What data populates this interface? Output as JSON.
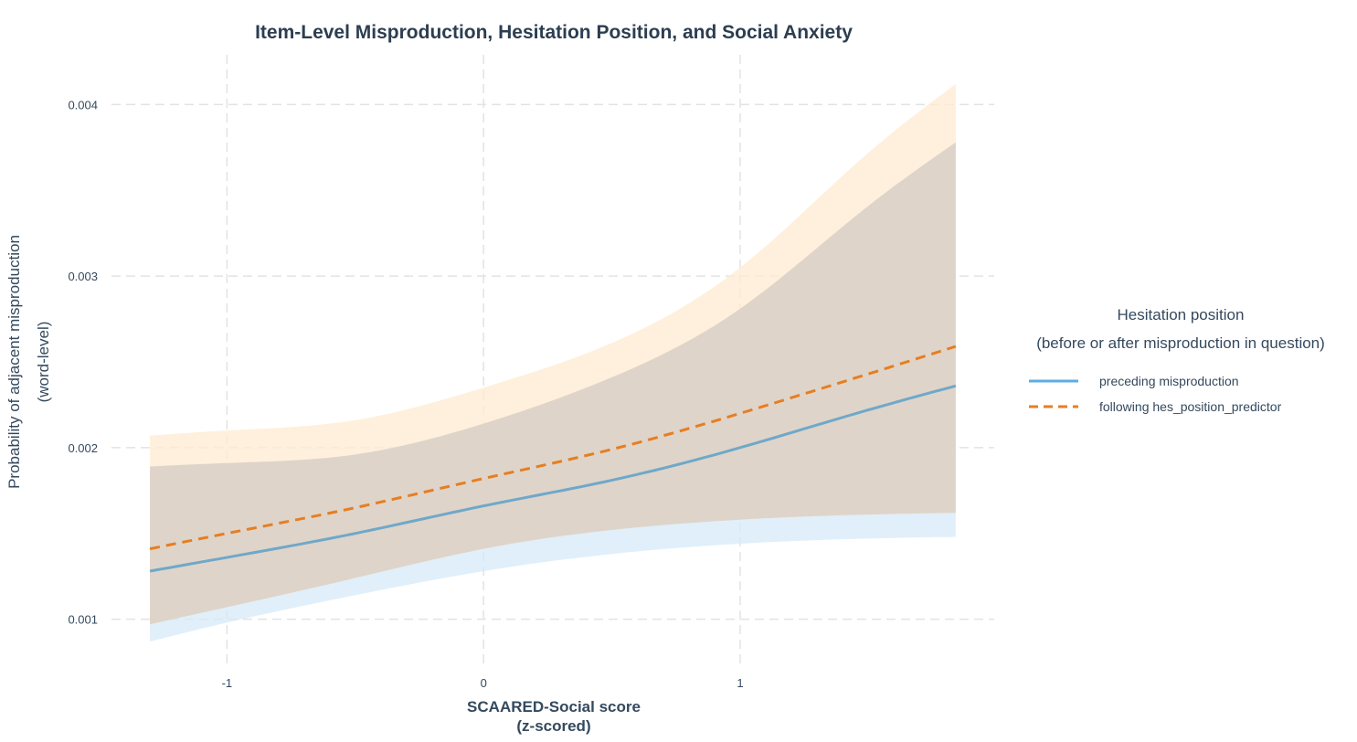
{
  "chart_data": {
    "type": "line",
    "title": "Item-Level Misproduction, Hesitation Position, and Social Anxiety",
    "xlabel_line1": "SCAARED-Social score",
    "xlabel_line2": "(z-scored)",
    "ylabel_line1": "Probability of adjacent misproduction",
    "ylabel_line2": "(word-level)",
    "xlim": [
      -1.45,
      1.99
    ],
    "ylim": [
      0.00071,
      0.00429
    ],
    "x_ticks": [
      -1,
      0,
      1
    ],
    "x_tick_labels": [
      "-1",
      "0",
      "1"
    ],
    "y_ticks": [
      0.001,
      0.002,
      0.003,
      0.004
    ],
    "y_tick_labels": [
      "0.001",
      "0.002",
      "0.003",
      "0.004"
    ],
    "grid": true,
    "legend": {
      "title_line1": "Hesitation position",
      "title_line2": "(before or after misproduction in question)",
      "placement": "right"
    },
    "x": [
      -1.3,
      -1.0,
      -0.5,
      0.0,
      0.5,
      1.0,
      1.5,
      1.84
    ],
    "series": [
      {
        "name": "preceding misproduction",
        "line_color": "#5dade2",
        "drawn_color": "#6fa8c9",
        "fill_color": "#d6eaf8",
        "dash": "solid",
        "values": [
          0.00128,
          0.00136,
          0.0015,
          0.00166,
          0.00181,
          0.002,
          0.00222,
          0.00236
        ],
        "lower": [
          0.00087,
          0.00098,
          0.00114,
          0.00128,
          0.00138,
          0.00144,
          0.00147,
          0.00148
        ],
        "upper": [
          0.00189,
          0.00191,
          0.00196,
          0.00214,
          0.00241,
          0.00281,
          0.00341,
          0.00378
        ]
      },
      {
        "name": "following hes_position_predictor",
        "line_color": "#e67e22",
        "drawn_color": "#e67e22",
        "fill_color": "#fdebd0",
        "dash": "dashed",
        "values": [
          0.00141,
          0.0015,
          0.00165,
          0.00182,
          0.00199,
          0.0022,
          0.00243,
          0.00259
        ],
        "lower": [
          0.00097,
          0.00107,
          0.00124,
          0.00141,
          0.00152,
          0.00158,
          0.00161,
          0.00162
        ],
        "upper": [
          0.00207,
          0.0021,
          0.00216,
          0.00235,
          0.00261,
          0.00305,
          0.00372,
          0.00412
        ]
      }
    ]
  }
}
